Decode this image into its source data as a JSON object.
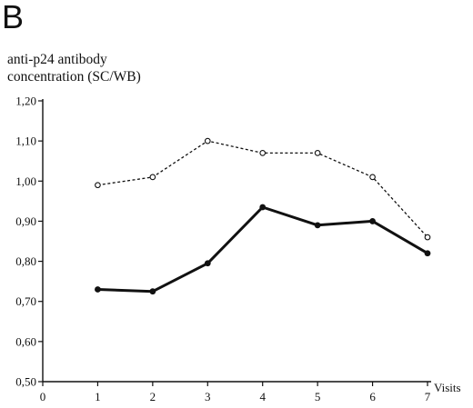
{
  "panel_label": "B",
  "chart_data": {
    "type": "line",
    "ylabel_lines": [
      "anti-p24 antibody",
      "concentration (SC/WB)"
    ],
    "xlabel": "Visits",
    "x_ticks": [
      "0",
      "1",
      "2",
      "3",
      "4",
      "5",
      "6",
      "7"
    ],
    "y_ticks": [
      "0,50",
      "0,60",
      "0,70",
      "0,80",
      "0,90",
      "1,00",
      "1,10",
      "1,20"
    ],
    "xlim": [
      0,
      7
    ],
    "ylim": [
      0.5,
      1.2
    ],
    "x": [
      1,
      2,
      3,
      4,
      5,
      6,
      7
    ],
    "series": [
      {
        "style": "dotted",
        "marker": "open-circle",
        "values": [
          0.99,
          1.01,
          1.1,
          1.07,
          1.07,
          1.01,
          0.86
        ]
      },
      {
        "style": "solid",
        "marker": "filled-circle",
        "values": [
          0.73,
          0.725,
          0.795,
          0.935,
          0.89,
          0.9,
          0.82
        ]
      }
    ]
  }
}
